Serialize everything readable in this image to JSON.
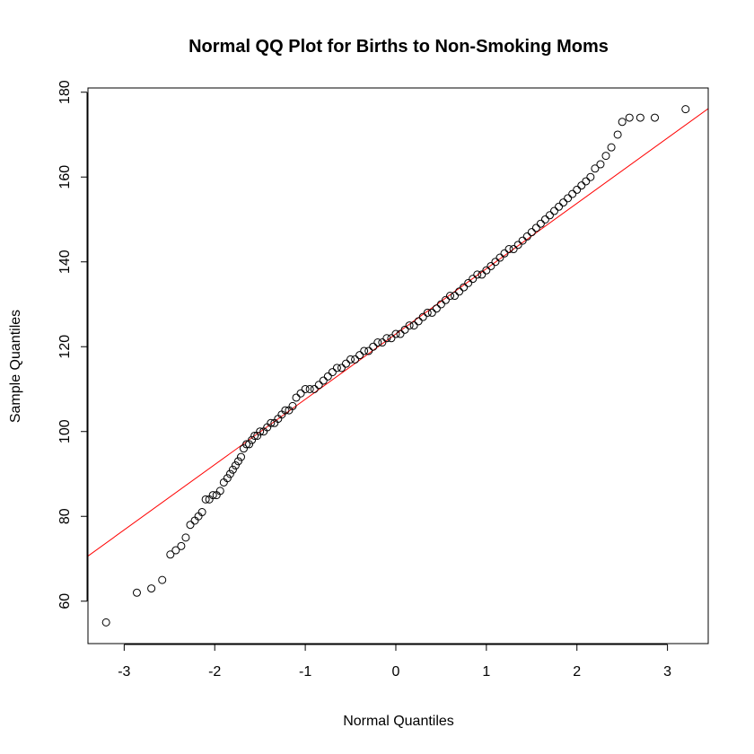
{
  "chart_data": {
    "type": "scatter",
    "title": "Normal QQ Plot for Births to Non-Smoking Moms",
    "xlabel": "Normal Quantiles",
    "ylabel": "Sample Quantiles",
    "xlim": [
      -3.4,
      3.45
    ],
    "ylim": [
      50,
      181
    ],
    "xticks": [
      -3,
      -2,
      -1,
      0,
      1,
      2,
      3
    ],
    "yticks": [
      60,
      80,
      100,
      120,
      140,
      160,
      180
    ],
    "grid": false,
    "legend": "none",
    "point_color": "#000000",
    "line_color": "#ff0000",
    "reference_line": {
      "intercept": 123.0,
      "slope": 15.4
    },
    "points": {
      "x": [
        -3.2,
        -2.86,
        -2.7,
        -2.58,
        -2.49,
        -2.43,
        -2.37,
        -2.32,
        -2.27,
        -2.22,
        -2.18,
        -2.14,
        -2.1,
        -2.06,
        -2.02,
        -1.98,
        -1.94,
        -1.9,
        -1.86,
        -1.83,
        -1.8,
        -1.77,
        -1.74,
        -1.71,
        -1.68,
        -1.65,
        -1.62,
        -1.59,
        -1.56,
        -1.53,
        -1.5,
        -1.46,
        -1.42,
        -1.38,
        -1.34,
        -1.3,
        -1.26,
        -1.22,
        -1.18,
        -1.14,
        -1.1,
        -1.05,
        -1.0,
        -0.95,
        -0.9,
        -0.85,
        -0.8,
        -0.75,
        -0.7,
        -0.65,
        -0.6,
        -0.55,
        -0.5,
        -0.45,
        -0.4,
        -0.35,
        -0.3,
        -0.25,
        -0.2,
        -0.15,
        -0.1,
        -0.05,
        0.0,
        0.05,
        0.1,
        0.15,
        0.2,
        0.25,
        0.3,
        0.35,
        0.4,
        0.45,
        0.5,
        0.55,
        0.6,
        0.65,
        0.7,
        0.75,
        0.8,
        0.85,
        0.9,
        0.95,
        1.0,
        1.05,
        1.1,
        1.15,
        1.2,
        1.25,
        1.3,
        1.35,
        1.4,
        1.45,
        1.5,
        1.55,
        1.6,
        1.65,
        1.7,
        1.75,
        1.8,
        1.85,
        1.9,
        1.95,
        2.0,
        2.05,
        2.1,
        2.15,
        2.2,
        2.26,
        2.32,
        2.38,
        2.45,
        2.5,
        2.58,
        2.7,
        2.86,
        3.2
      ],
      "y": [
        55,
        62,
        63,
        65,
        71,
        72,
        73,
        75,
        78,
        79,
        80,
        81,
        84,
        84,
        85,
        85,
        86,
        88,
        89,
        90,
        91,
        92,
        93,
        94,
        96,
        97,
        97,
        98,
        99,
        99,
        100,
        100,
        101,
        102,
        102,
        103,
        104,
        105,
        105,
        106,
        108,
        109,
        110,
        110,
        110,
        111,
        112,
        113,
        114,
        115,
        115,
        116,
        117,
        117,
        118,
        119,
        119,
        120,
        121,
        121,
        122,
        122,
        123,
        123,
        124,
        125,
        125,
        126,
        127,
        128,
        128,
        129,
        130,
        131,
        132,
        132,
        133,
        134,
        135,
        136,
        137,
        137,
        138,
        139,
        140,
        141,
        142,
        143,
        143,
        144,
        145,
        146,
        147,
        148,
        149,
        150,
        151,
        152,
        153,
        154,
        155,
        156,
        157,
        158,
        159,
        160,
        162,
        163,
        165,
        167,
        170,
        173,
        174,
        174,
        174,
        176
      ]
    }
  }
}
